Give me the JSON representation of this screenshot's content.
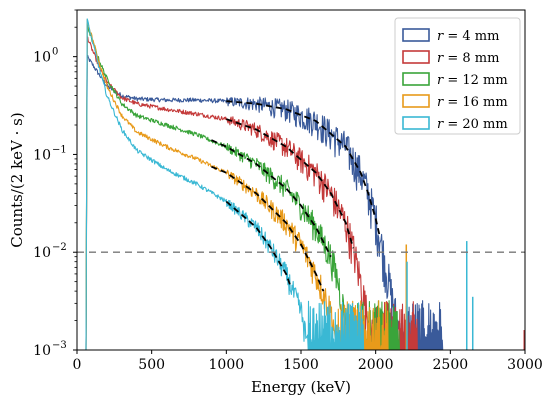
{
  "chart_data": {
    "type": "line",
    "title": "",
    "xlabel": "Energy (keV)",
    "ylabel": "Counts/(2 keV · s)",
    "xlim": [
      0,
      3000
    ],
    "ylim": [
      0.001,
      3
    ],
    "yscale": "log",
    "xticks": [
      0,
      500,
      1000,
      1500,
      2000,
      2500,
      3000
    ],
    "yticks": [
      {
        "value": 0.001,
        "base": "10",
        "exp": "−3"
      },
      {
        "value": 0.01,
        "base": "10",
        "exp": "−2"
      },
      {
        "value": 0.1,
        "base": "10",
        "exp": "−1"
      },
      {
        "value": 1,
        "base": "10",
        "exp": "0"
      }
    ],
    "grid": false,
    "legend_position": "top-right",
    "reference_line": {
      "y": 0.01,
      "style": "dashed",
      "color": "#777777"
    },
    "series": [
      {
        "name": "r = 4 mm",
        "symbol": "r",
        "label_value": "= 4 mm",
        "color": "#3a5a9a",
        "points": [
          [
            60,
            0.001
          ],
          [
            68,
            1.0
          ],
          [
            100,
            0.85
          ],
          [
            150,
            0.65
          ],
          [
            200,
            0.5
          ],
          [
            300,
            0.4
          ],
          [
            400,
            0.37
          ],
          [
            600,
            0.36
          ],
          [
            800,
            0.36
          ],
          [
            1000,
            0.35
          ],
          [
            1200,
            0.33
          ],
          [
            1400,
            0.29
          ],
          [
            1600,
            0.22
          ],
          [
            1800,
            0.12
          ],
          [
            1900,
            0.065
          ],
          [
            1950,
            0.04
          ],
          [
            2000,
            0.022
          ],
          [
            2050,
            0.01
          ],
          [
            2100,
            0.004
          ],
          [
            2150,
            0.0017
          ],
          [
            2200,
            0.001
          ]
        ]
      },
      {
        "name": "r = 8 mm",
        "symbol": "r",
        "label_value": "= 8 mm",
        "color": "#c43a3a",
        "points": [
          [
            60,
            0.001
          ],
          [
            68,
            1.6
          ],
          [
            100,
            1.2
          ],
          [
            150,
            0.78
          ],
          [
            200,
            0.55
          ],
          [
            300,
            0.38
          ],
          [
            400,
            0.33
          ],
          [
            600,
            0.29
          ],
          [
            800,
            0.26
          ],
          [
            1000,
            0.23
          ],
          [
            1200,
            0.18
          ],
          [
            1400,
            0.12
          ],
          [
            1600,
            0.065
          ],
          [
            1700,
            0.04
          ],
          [
            1800,
            0.02
          ],
          [
            1850,
            0.011
          ],
          [
            1900,
            0.005
          ],
          [
            1950,
            0.002
          ],
          [
            2000,
            0.001
          ]
        ]
      },
      {
        "name": "r = 12 mm",
        "symbol": "r",
        "label_value": "= 12 mm",
        "color": "#3aa43a",
        "points": [
          [
            60,
            0.001
          ],
          [
            68,
            2.1
          ],
          [
            100,
            1.5
          ],
          [
            150,
            0.9
          ],
          [
            200,
            0.6
          ],
          [
            300,
            0.33
          ],
          [
            400,
            0.25
          ],
          [
            600,
            0.2
          ],
          [
            800,
            0.16
          ],
          [
            1000,
            0.12
          ],
          [
            1200,
            0.08
          ],
          [
            1400,
            0.045
          ],
          [
            1500,
            0.03
          ],
          [
            1600,
            0.018
          ],
          [
            1700,
            0.009
          ],
          [
            1750,
            0.005
          ],
          [
            1800,
            0.002
          ],
          [
            1850,
            0.001
          ]
        ]
      },
      {
        "name": "r = 16 mm",
        "symbol": "r",
        "label_value": "= 16 mm",
        "color": "#e89a1a",
        "points": [
          [
            60,
            0.001
          ],
          [
            68,
            2.3
          ],
          [
            100,
            1.6
          ],
          [
            150,
            0.85
          ],
          [
            200,
            0.5
          ],
          [
            300,
            0.25
          ],
          [
            400,
            0.17
          ],
          [
            600,
            0.12
          ],
          [
            800,
            0.09
          ],
          [
            1000,
            0.065
          ],
          [
            1200,
            0.04
          ],
          [
            1400,
            0.02
          ],
          [
            1500,
            0.012
          ],
          [
            1600,
            0.006
          ],
          [
            1700,
            0.0025
          ],
          [
            1750,
            0.001
          ]
        ]
      },
      {
        "name": "r = 20 mm",
        "symbol": "r",
        "label_value": "= 20 mm",
        "color": "#3ab8d4",
        "points": [
          [
            60,
            0.001
          ],
          [
            68,
            2.4
          ],
          [
            100,
            1.5
          ],
          [
            150,
            0.75
          ],
          [
            200,
            0.4
          ],
          [
            300,
            0.18
          ],
          [
            400,
            0.11
          ],
          [
            600,
            0.07
          ],
          [
            800,
            0.05
          ],
          [
            1000,
            0.033
          ],
          [
            1200,
            0.018
          ],
          [
            1300,
            0.011
          ],
          [
            1400,
            0.006
          ],
          [
            1500,
            0.0025
          ],
          [
            1550,
            0.001
          ]
        ]
      }
    ],
    "fits": [
      {
        "series": "r = 4 mm",
        "points": [
          [
            1000,
            0.35
          ],
          [
            1200,
            0.33
          ],
          [
            1400,
            0.29
          ],
          [
            1600,
            0.22
          ],
          [
            1800,
            0.12
          ],
          [
            1900,
            0.065
          ],
          [
            1950,
            0.04
          ],
          [
            2000,
            0.022
          ],
          [
            2030,
            0.014
          ]
        ]
      },
      {
        "series": "r = 8 mm",
        "points": [
          [
            1000,
            0.23
          ],
          [
            1200,
            0.18
          ],
          [
            1400,
            0.12
          ],
          [
            1600,
            0.065
          ],
          [
            1700,
            0.04
          ],
          [
            1800,
            0.02
          ],
          [
            1850,
            0.011
          ]
        ]
      },
      {
        "series": "r = 12 mm",
        "points": [
          [
            900,
            0.14
          ],
          [
            1000,
            0.12
          ],
          [
            1200,
            0.08
          ],
          [
            1400,
            0.045
          ],
          [
            1500,
            0.03
          ],
          [
            1600,
            0.018
          ],
          [
            1700,
            0.009
          ]
        ]
      },
      {
        "series": "r = 16 mm",
        "points": [
          [
            900,
            0.075
          ],
          [
            1000,
            0.065
          ],
          [
            1200,
            0.04
          ],
          [
            1400,
            0.02
          ],
          [
            1500,
            0.012
          ],
          [
            1600,
            0.006
          ],
          [
            1650,
            0.004
          ]
        ]
      },
      {
        "series": "r = 20 mm",
        "points": [
          [
            1000,
            0.033
          ],
          [
            1200,
            0.018
          ],
          [
            1300,
            0.011
          ],
          [
            1400,
            0.006
          ],
          [
            1430,
            0.0045
          ]
        ]
      }
    ],
    "peaks": [
      {
        "x": 2205,
        "y": 0.012,
        "color": "#e89a1a"
      },
      {
        "x": 2210,
        "y": 0.008,
        "color": "#3ab8d4"
      },
      {
        "x": 2610,
        "y": 0.013,
        "color": "#3ab8d4"
      },
      {
        "x": 2650,
        "y": 0.0035,
        "color": "#3ab8d4"
      },
      {
        "x": 2995,
        "y": 0.0016,
        "color": "#c43a3a"
      }
    ]
  }
}
